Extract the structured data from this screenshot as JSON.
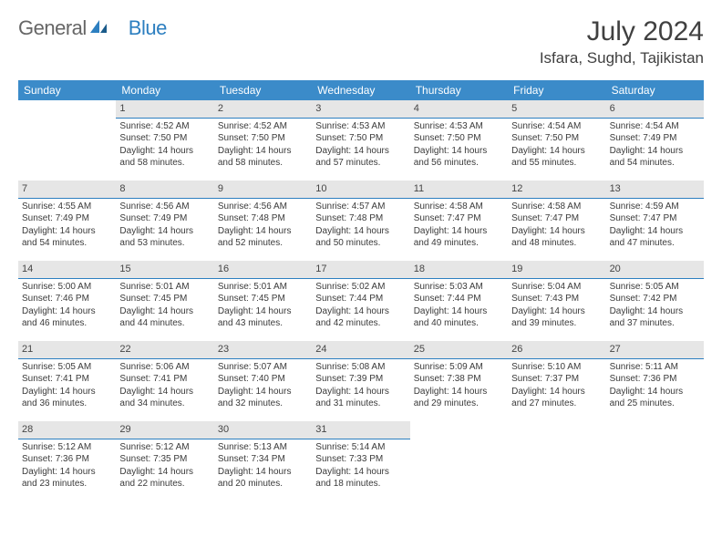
{
  "logo": {
    "general": "General",
    "blue": "Blue"
  },
  "title": "July 2024",
  "location": "Isfara, Sughd, Tajikistan",
  "day_headers": [
    "Sunday",
    "Monday",
    "Tuesday",
    "Wednesday",
    "Thursday",
    "Friday",
    "Saturday"
  ],
  "colors": {
    "header_bg": "#3b8bc9",
    "header_text": "#ffffff",
    "date_bg": "#e6e6e6",
    "date_border": "#2d7fc0",
    "page_bg": "#ffffff",
    "text": "#3a3a3a",
    "title_text": "#404040"
  },
  "cells": [
    {
      "n": "",
      "sr": "",
      "ss": "",
      "d1": "",
      "d2": ""
    },
    {
      "n": "1",
      "sr": "Sunrise: 4:52 AM",
      "ss": "Sunset: 7:50 PM",
      "d1": "Daylight: 14 hours",
      "d2": "and 58 minutes."
    },
    {
      "n": "2",
      "sr": "Sunrise: 4:52 AM",
      "ss": "Sunset: 7:50 PM",
      "d1": "Daylight: 14 hours",
      "d2": "and 58 minutes."
    },
    {
      "n": "3",
      "sr": "Sunrise: 4:53 AM",
      "ss": "Sunset: 7:50 PM",
      "d1": "Daylight: 14 hours",
      "d2": "and 57 minutes."
    },
    {
      "n": "4",
      "sr": "Sunrise: 4:53 AM",
      "ss": "Sunset: 7:50 PM",
      "d1": "Daylight: 14 hours",
      "d2": "and 56 minutes."
    },
    {
      "n": "5",
      "sr": "Sunrise: 4:54 AM",
      "ss": "Sunset: 7:50 PM",
      "d1": "Daylight: 14 hours",
      "d2": "and 55 minutes."
    },
    {
      "n": "6",
      "sr": "Sunrise: 4:54 AM",
      "ss": "Sunset: 7:49 PM",
      "d1": "Daylight: 14 hours",
      "d2": "and 54 minutes."
    },
    {
      "n": "7",
      "sr": "Sunrise: 4:55 AM",
      "ss": "Sunset: 7:49 PM",
      "d1": "Daylight: 14 hours",
      "d2": "and 54 minutes."
    },
    {
      "n": "8",
      "sr": "Sunrise: 4:56 AM",
      "ss": "Sunset: 7:49 PM",
      "d1": "Daylight: 14 hours",
      "d2": "and 53 minutes."
    },
    {
      "n": "9",
      "sr": "Sunrise: 4:56 AM",
      "ss": "Sunset: 7:48 PM",
      "d1": "Daylight: 14 hours",
      "d2": "and 52 minutes."
    },
    {
      "n": "10",
      "sr": "Sunrise: 4:57 AM",
      "ss": "Sunset: 7:48 PM",
      "d1": "Daylight: 14 hours",
      "d2": "and 50 minutes."
    },
    {
      "n": "11",
      "sr": "Sunrise: 4:58 AM",
      "ss": "Sunset: 7:47 PM",
      "d1": "Daylight: 14 hours",
      "d2": "and 49 minutes."
    },
    {
      "n": "12",
      "sr": "Sunrise: 4:58 AM",
      "ss": "Sunset: 7:47 PM",
      "d1": "Daylight: 14 hours",
      "d2": "and 48 minutes."
    },
    {
      "n": "13",
      "sr": "Sunrise: 4:59 AM",
      "ss": "Sunset: 7:47 PM",
      "d1": "Daylight: 14 hours",
      "d2": "and 47 minutes."
    },
    {
      "n": "14",
      "sr": "Sunrise: 5:00 AM",
      "ss": "Sunset: 7:46 PM",
      "d1": "Daylight: 14 hours",
      "d2": "and 46 minutes."
    },
    {
      "n": "15",
      "sr": "Sunrise: 5:01 AM",
      "ss": "Sunset: 7:45 PM",
      "d1": "Daylight: 14 hours",
      "d2": "and 44 minutes."
    },
    {
      "n": "16",
      "sr": "Sunrise: 5:01 AM",
      "ss": "Sunset: 7:45 PM",
      "d1": "Daylight: 14 hours",
      "d2": "and 43 minutes."
    },
    {
      "n": "17",
      "sr": "Sunrise: 5:02 AM",
      "ss": "Sunset: 7:44 PM",
      "d1": "Daylight: 14 hours",
      "d2": "and 42 minutes."
    },
    {
      "n": "18",
      "sr": "Sunrise: 5:03 AM",
      "ss": "Sunset: 7:44 PM",
      "d1": "Daylight: 14 hours",
      "d2": "and 40 minutes."
    },
    {
      "n": "19",
      "sr": "Sunrise: 5:04 AM",
      "ss": "Sunset: 7:43 PM",
      "d1": "Daylight: 14 hours",
      "d2": "and 39 minutes."
    },
    {
      "n": "20",
      "sr": "Sunrise: 5:05 AM",
      "ss": "Sunset: 7:42 PM",
      "d1": "Daylight: 14 hours",
      "d2": "and 37 minutes."
    },
    {
      "n": "21",
      "sr": "Sunrise: 5:05 AM",
      "ss": "Sunset: 7:41 PM",
      "d1": "Daylight: 14 hours",
      "d2": "and 36 minutes."
    },
    {
      "n": "22",
      "sr": "Sunrise: 5:06 AM",
      "ss": "Sunset: 7:41 PM",
      "d1": "Daylight: 14 hours",
      "d2": "and 34 minutes."
    },
    {
      "n": "23",
      "sr": "Sunrise: 5:07 AM",
      "ss": "Sunset: 7:40 PM",
      "d1": "Daylight: 14 hours",
      "d2": "and 32 minutes."
    },
    {
      "n": "24",
      "sr": "Sunrise: 5:08 AM",
      "ss": "Sunset: 7:39 PM",
      "d1": "Daylight: 14 hours",
      "d2": "and 31 minutes."
    },
    {
      "n": "25",
      "sr": "Sunrise: 5:09 AM",
      "ss": "Sunset: 7:38 PM",
      "d1": "Daylight: 14 hours",
      "d2": "and 29 minutes."
    },
    {
      "n": "26",
      "sr": "Sunrise: 5:10 AM",
      "ss": "Sunset: 7:37 PM",
      "d1": "Daylight: 14 hours",
      "d2": "and 27 minutes."
    },
    {
      "n": "27",
      "sr": "Sunrise: 5:11 AM",
      "ss": "Sunset: 7:36 PM",
      "d1": "Daylight: 14 hours",
      "d2": "and 25 minutes."
    },
    {
      "n": "28",
      "sr": "Sunrise: 5:12 AM",
      "ss": "Sunset: 7:36 PM",
      "d1": "Daylight: 14 hours",
      "d2": "and 23 minutes."
    },
    {
      "n": "29",
      "sr": "Sunrise: 5:12 AM",
      "ss": "Sunset: 7:35 PM",
      "d1": "Daylight: 14 hours",
      "d2": "and 22 minutes."
    },
    {
      "n": "30",
      "sr": "Sunrise: 5:13 AM",
      "ss": "Sunset: 7:34 PM",
      "d1": "Daylight: 14 hours",
      "d2": "and 20 minutes."
    },
    {
      "n": "31",
      "sr": "Sunrise: 5:14 AM",
      "ss": "Sunset: 7:33 PM",
      "d1": "Daylight: 14 hours",
      "d2": "and 18 minutes."
    },
    {
      "n": "",
      "sr": "",
      "ss": "",
      "d1": "",
      "d2": ""
    },
    {
      "n": "",
      "sr": "",
      "ss": "",
      "d1": "",
      "d2": ""
    },
    {
      "n": "",
      "sr": "",
      "ss": "",
      "d1": "",
      "d2": ""
    }
  ]
}
